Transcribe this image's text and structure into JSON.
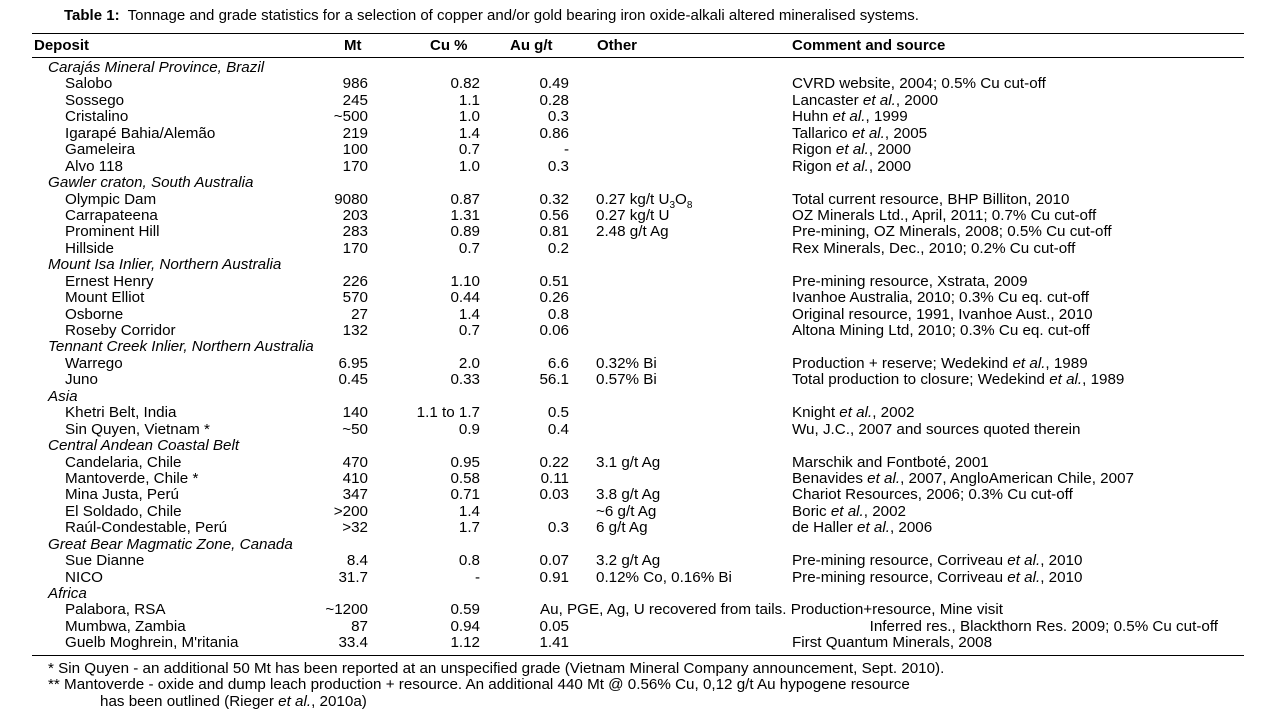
{
  "caption": {
    "label": "Table 1:",
    "text": "Tonnage and grade statistics for a selection of copper and/or gold bearing iron oxide-alkali altered mineralised systems."
  },
  "headers": {
    "deposit": "Deposit",
    "mt": "Mt",
    "cu": "Cu %",
    "au": "Au g/t",
    "other": "Other",
    "comment": "Comment and source"
  },
  "rows": [
    {
      "kind": "group",
      "label": "Carajás Mineral Province, Brazil"
    },
    {
      "kind": "data",
      "deposit": "Salobo",
      "mt": "986",
      "cu": "0.82",
      "au": "0.49",
      "other": "",
      "comment": [
        "CVRD website, 2004; 0.5% Cu cut-off"
      ]
    },
    {
      "kind": "data",
      "deposit": "Sossego",
      "mt": "245",
      "cu": "1.1",
      "au": "0.28",
      "other": "",
      "comment": [
        "Lancaster ",
        "et al.",
        ", 2000"
      ]
    },
    {
      "kind": "data",
      "deposit": "Cristalino",
      "mt": "~500",
      "cu": "1.0",
      "au": "0.3",
      "other": "",
      "comment": [
        "Huhn ",
        "et al.",
        ", 1999"
      ]
    },
    {
      "kind": "data",
      "deposit": "Igarapé Bahia/Alemão",
      "mt": "219",
      "cu": "1.4",
      "au": "0.86",
      "other": "",
      "comment": [
        "Tallarico ",
        "et al.",
        ", 2005"
      ]
    },
    {
      "kind": "data",
      "deposit": "Gameleira",
      "mt": "100",
      "cu": "0.7",
      "au": "-",
      "other": "",
      "comment": [
        "Rigon ",
        "et al.",
        ", 2000"
      ]
    },
    {
      "kind": "data",
      "deposit": "Alvo 118",
      "mt": "170",
      "cu": "1.0",
      "au": "0.3",
      "other": "",
      "comment": [
        "Rigon ",
        "et al.",
        ", 2000"
      ]
    },
    {
      "kind": "group",
      "label": "Gawler craton, South Australia"
    },
    {
      "kind": "data",
      "deposit": "Olympic Dam",
      "mt": "9080",
      "cu": "0.87",
      "au": "0.32",
      "other": "0.27 kg/t U",
      "other_sub1": "3",
      "other_mid": "O",
      "other_sub2": "8",
      "comment": [
        "Total current resource, BHP Billiton, 2010"
      ]
    },
    {
      "kind": "data",
      "deposit": "Carrapateena",
      "mt": "203",
      "cu": "1.31",
      "au": "0.56",
      "other": "0.27 kg/t U",
      "comment": [
        "OZ Minerals Ltd., April, 2011; 0.7% Cu cut-off"
      ]
    },
    {
      "kind": "data",
      "deposit": "Prominent Hill",
      "mt": "283",
      "cu": "0.89",
      "au": "0.81",
      "other": "2.48 g/t Ag",
      "comment": [
        "Pre-mining, OZ Minerals, 2008; 0.5% Cu cut-off"
      ]
    },
    {
      "kind": "data",
      "deposit": "Hillside",
      "mt": "170",
      "cu": "0.7",
      "au": "0.2",
      "other": "",
      "comment": [
        "Rex Minerals, Dec., 2010; 0.2% Cu cut-off"
      ]
    },
    {
      "kind": "group",
      "label": "Mount Isa Inlier, Northern Australia"
    },
    {
      "kind": "data",
      "deposit": "Ernest Henry",
      "mt": "226",
      "cu": "1.10",
      "au": "0.51",
      "other": "",
      "comment": [
        "Pre-mining resource, Xstrata, 2009"
      ]
    },
    {
      "kind": "data",
      "deposit": "Mount Elliot",
      "mt": "570",
      "cu": "0.44",
      "au": "0.26",
      "other": "",
      "comment": [
        "Ivanhoe Australia, 2010; 0.3% Cu eq. cut-off"
      ]
    },
    {
      "kind": "data",
      "deposit": "Osborne",
      "mt": "27",
      "cu": "1.4",
      "au": "0.8",
      "other": "",
      "comment": [
        "Original resource, 1991, Ivanhoe Aust., 2010"
      ]
    },
    {
      "kind": "data",
      "deposit": "Roseby Corridor",
      "mt": "132",
      "cu": "0.7",
      "au": "0.06",
      "other": "",
      "comment": [
        "Altona Mining Ltd, 2010; 0.3% Cu eq. cut-off"
      ]
    },
    {
      "kind": "group",
      "label": "Tennant Creek Inlier, Northern Australia"
    },
    {
      "kind": "data",
      "deposit": "Warrego",
      "mt": "6.95",
      "cu": "2.0",
      "au": "6.6",
      "other": "0.32% Bi",
      "comment": [
        "Production + reserve; Wedekind ",
        "et al.",
        ", 1989"
      ]
    },
    {
      "kind": "data",
      "deposit": "Juno",
      "mt": "0.45",
      "cu": "0.33",
      "au": "56.1",
      "other": "0.57% Bi",
      "comment": [
        "Total production to closure; Wedekind ",
        "et al.",
        ", 1989"
      ]
    },
    {
      "kind": "group",
      "label": "Asia"
    },
    {
      "kind": "data",
      "deposit": "Khetri Belt, India",
      "mt": "140",
      "cu": "1.1 to 1.7",
      "au": "0.5",
      "other": "",
      "comment": [
        "Knight ",
        "et al.",
        ", 2002"
      ]
    },
    {
      "kind": "data",
      "deposit": "Sin Quyen, Vietnam *",
      "mt": "~50",
      "cu": "0.9",
      "au": "0.4",
      "other": "",
      "comment": [
        "Wu, J.C., 2007 and sources quoted therein"
      ]
    },
    {
      "kind": "group",
      "label": "Central Andean Coastal Belt"
    },
    {
      "kind": "data",
      "deposit": "Candelaria, Chile",
      "mt": "470",
      "cu": "0.95",
      "au": "0.22",
      "other": "3.1 g/t Ag",
      "comment": [
        "Marschik and Fontboté, 2001"
      ]
    },
    {
      "kind": "data",
      "deposit": "Mantoverde, Chile *",
      "mt": "410",
      "cu": "0.58",
      "au": "0.11",
      "other": "",
      "comment": [
        "Benavides ",
        "et al.",
        ", 2007, AngloAmerican Chile, 2007"
      ]
    },
    {
      "kind": "data",
      "deposit": "Mina Justa, Perú",
      "mt": "347",
      "cu": "0.71",
      "au": "0.03",
      "other": "3.8 g/t Ag",
      "comment": [
        "Chariot Resources, 2006; 0.3% Cu cut-off"
      ]
    },
    {
      "kind": "data",
      "deposit": "El Soldado, Chile",
      "mt": ">200",
      "cu": "1.4",
      "au": "",
      "other": "~6 g/t Ag",
      "comment": [
        "Boric ",
        "et al.",
        ", 2002"
      ]
    },
    {
      "kind": "data",
      "deposit": "Raúl-Condestable, Perú",
      "mt": ">32",
      "cu": "1.7",
      "au": "0.3",
      "other": "6 g/t Ag",
      "comment": [
        "de Haller ",
        "et al.",
        ", 2006"
      ]
    },
    {
      "kind": "group",
      "label": "Great Bear Magmatic Zone, Canada"
    },
    {
      "kind": "data",
      "deposit": "Sue Dianne",
      "mt": "8.4",
      "cu": "0.8",
      "au": "0.07",
      "other": "3.2 g/t Ag",
      "comment": [
        "Pre-mining resource, Corriveau ",
        "et al.",
        ", 2010"
      ]
    },
    {
      "kind": "data",
      "deposit": "NICO",
      "mt": "31.7",
      "cu": "-",
      "au": "0.91",
      "other": "0.12% Co, 0.16% Bi",
      "comment": [
        "Pre-mining resource, Corriveau ",
        "et al.",
        ", 2010"
      ]
    },
    {
      "kind": "group",
      "label": "Africa"
    },
    {
      "kind": "data",
      "deposit": "Palabora, RSA",
      "mt": "~1200",
      "cu": "0.59",
      "au": "",
      "other": "",
      "note": "Au, PGE, Ag, U recovered from tails.  Production+resource, Mine visit",
      "comment": []
    },
    {
      "kind": "data",
      "deposit": "Mumbwa, Zambia",
      "mt": "87",
      "cu": "0.94",
      "au": "0.05",
      "other": "",
      "note_right": "Inferred res., Blackthorn Res. 2009; 0.5% Cu cut-off",
      "comment": []
    },
    {
      "kind": "data",
      "deposit": "Guelb Moghrein, M'ritania",
      "mt": "33.4",
      "cu": "1.12",
      "au": "1.41",
      "other": "",
      "comment": [
        "First Quantum Minerals, 2008"
      ]
    }
  ],
  "footnotes": {
    "f1": "* Sin Quyen - an additional 50 Mt has been reported at an unspecified grade (Vietnam Mineral Company announcement, Sept. 2010).",
    "f2": "** Mantoverde - oxide and dump leach production + resource.  An additional 440 Mt @ 0.56% Cu, 0,12 g/t Au hypogene resource",
    "f3_pre": "has been outlined (Rieger ",
    "f3_em": "et al.",
    "f3_post": ", 2010a)"
  }
}
